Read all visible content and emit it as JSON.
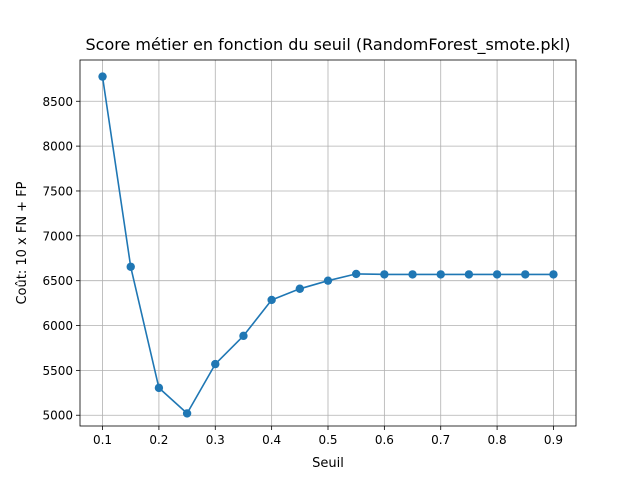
{
  "chart_data": {
    "type": "line",
    "title": "Score métier en fonction du seuil (RandomForest_smote.pkl)",
    "xlabel": "Seuil",
    "ylabel": "Coût: 10 x FN + FP",
    "x": [
      0.1,
      0.15,
      0.2,
      0.25,
      0.3,
      0.35,
      0.4,
      0.45,
      0.5,
      0.55,
      0.6,
      0.65,
      0.7,
      0.75,
      0.8,
      0.85,
      0.9
    ],
    "series": [
      {
        "values": [
          8775,
          6655,
          5305,
          5020,
          5570,
          5885,
          6285,
          6410,
          6500,
          6575,
          6570,
          6570,
          6570,
          6570,
          6570,
          6570,
          6570
        ]
      }
    ],
    "xlim": [
      0.06,
      0.94
    ],
    "ylim": [
      4880,
      8960
    ],
    "xticks": [
      "0.1",
      "0.2",
      "0.3",
      "0.4",
      "0.5",
      "0.6",
      "0.7",
      "0.8",
      "0.9"
    ],
    "yticks": [
      "5000",
      "5500",
      "6000",
      "6500",
      "7000",
      "7500",
      "8000",
      "8500"
    ],
    "grid": true,
    "color": "#1f77b4"
  }
}
